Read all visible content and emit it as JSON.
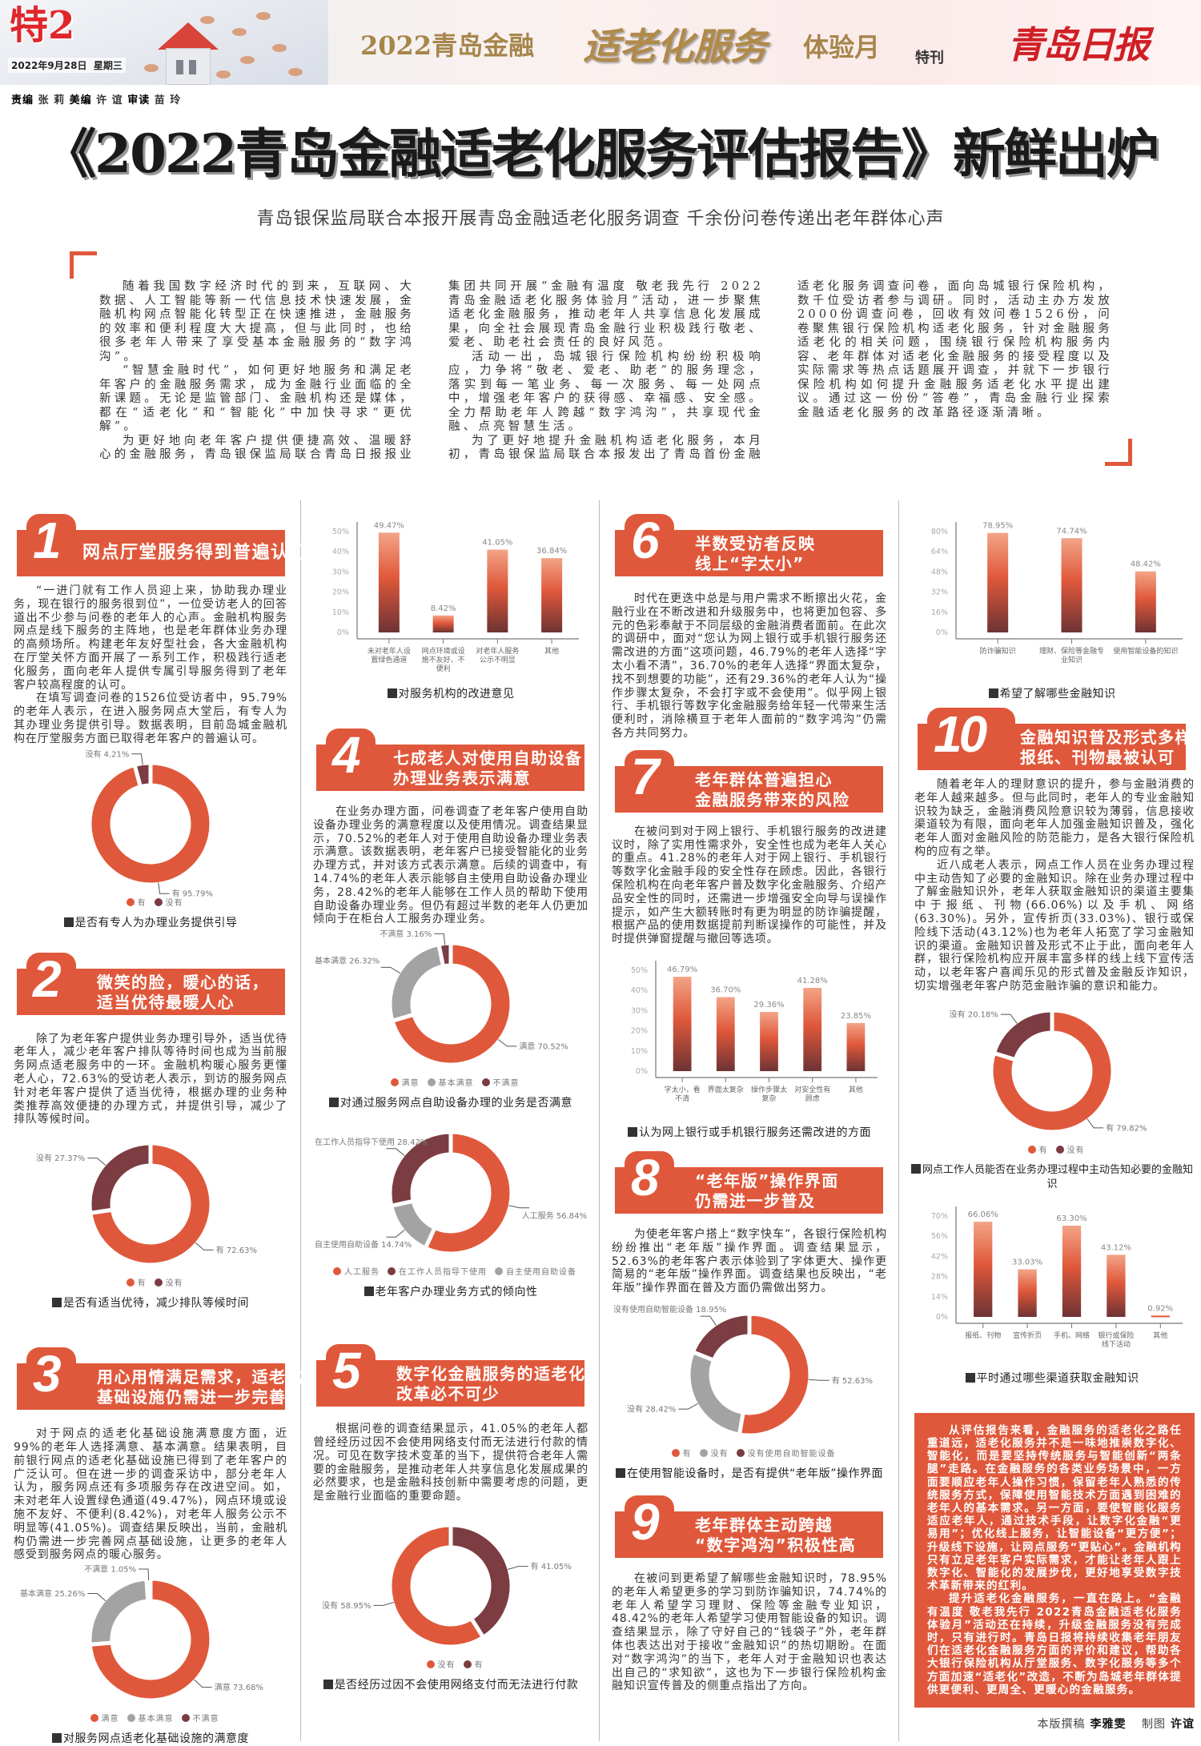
{
  "masthead": {
    "page_label": "特2",
    "date": "2022年9月28日",
    "weekday": "星期三",
    "banner_part1": "2022青岛金融",
    "banner_part2": "适老化服务",
    "banner_part3": "体验月",
    "banner_tag": "特刊",
    "newspaper_logo": "青岛日报"
  },
  "editors": {
    "l1": "责编",
    "n1": "张 莉",
    "l2": "美编",
    "n2": "许 谊",
    "l3": "审读",
    "n3": "苗 玲"
  },
  "headline": "《2022青岛金融适老化服务评估报告》新鲜出炉",
  "subheadline": "青岛银保监局联合本报开展青岛金融适老化服务调查  千余份问卷传递出老年群体心声",
  "intro": [
    "随着我国数字经济时代的到来，互联网、大数据、人工智能等新一代信息技术快速发展，金融机构网点智能化转型正在快速推进，金融服务的效率和便利程度大大提高，但与此同时，也给很多老年人带来了享受基本金融服务的“数字鸿沟”。",
    "“智慧金融时代”，如何更好地服务和满足老年客户的金融服务需求，成为金融行业面临的全新课题。无论是监管部门、金融机构还是媒体，都在“适老化”和“智能化”中加快寻求“更优解”。",
    "为更好地向老年客户提供便捷高效、温暖舒心的金融服务，青岛银保监局联合青岛日报报业集团共同开展“金融有温度 敬老我先行 2022青岛金融适老化服务体验月”活动，进一步聚焦适老化金融服务，推动老年人共享信息化发展成果，向全社会展现青岛金融行业积极践行敬老、爱老、助老社会责任的良好风范。",
    "活动一出，岛城银行保险机构纷纷积极响应，力争将“敬老、爱老、助老”的服务理念，落实到每一笔业务、每一次服务、每一处网点中，增强老年客户的获得感、幸福感、安全感。全力帮助老年人跨越“数字鸿沟”，共享现代金融、点亮智慧生活。",
    "为了更好地提升金融机构适老化服务，本月初，青岛银保监局联合本报发出了青岛首份金融适老化服务调查问卷，面向岛城银行保险机构，数千位受访者参与调研。同时，活动主办方发放2000份调查问卷，回收有效问卷1526份，问卷聚焦银行保险机构适老化服务，针对金融服务适老化的相关问题，围绕银行保险机构服务内容、老年群体对适老化金融服务的接受程度以及实际需求等热点话题展开调查，并就下一步银行保险机构如何提升金融服务适老化水平提出建议。通过这一份份“答卷”，青岛金融行业探索金融适老化服务的改革路径逐渐清晰。"
  ],
  "sections": [
    {
      "number": "1",
      "title": [
        "网点厅堂服务得到普遍认可"
      ],
      "paragraphs": [
        "“一进门就有工作人员迎上来，协助我办理业务，现在银行的服务很到位”，一位受访老人的回答道出不少参与问卷的老年人的心声。金融机构服务网点是线下服务的主阵地，也是老年群体业务办理的高频场所。构建老年友好型社会，各大金融机构在厅堂关怀方面开展了一系列工作，积极践行适老化服务，面向老年人提供专属引导服务得到了老年客户较高程度的认可。",
        "在填写调查问卷的1526位受访者中，95.79%的老年人表示，在进入服务网点大堂后，有专人为其办理业务提供引导。数据表明，目前岛城金融机构在厅堂服务方面已取得老年客户的普遍认可。"
      ]
    },
    {
      "number": "2",
      "title": [
        "微笑的脸，暖心的话，",
        "适当优待最暖人心"
      ],
      "paragraphs": [
        "除了为老年客户提供业务办理引导外，适当优待老年人，减少老年客户排队等待时间也成为当前服务网点适老服务中的一环。金融机构暖心服务更懂老人心，72.63%的受访老人表示，到访的服务网点针对老年客户提供了适当优待，根据办理的业务种类推荐高效便捷的办理方式，并提供引导，减少了排队等候时间。"
      ]
    },
    {
      "number": "3",
      "title": [
        "用心用情满足需求，适老化",
        "基础设施仍需进一步完善"
      ],
      "paragraphs": [
        "对于网点的适老化基础设施满意度方面，近99%的老年人选择满意、基本满意。结果表明，目前银行网点的适老化基础设施已得到了老年客户的广泛认可。但在进一步的调查采访中，部分老年人认为，服务网点还有多项服务存在改进空间。如，未对老年人设置绿色通道(49.47%)，网点环境或设施不友好、不便利(8.42%)，对老年人服务公示不明显等(41.05%)。调查结果反映出，当前，金融机构仍需进一步完善网点基础设施，让更多的老年人感受到服务网点的暖心服务。"
      ]
    },
    {
      "number": "4",
      "title": [
        "七成老人对使用自助设备",
        "办理业务表示满意"
      ],
      "paragraphs": [
        "在业务办理方面，问卷调查了老年客户使用自助设备办理业务的满意程度以及使用情况。调查结果显示，70.52%的老年人对于使用自助设备办理业务表示满意。该数据表明，老年客户已接受智能化的业务办理方式，并对该方式表示满意。后续的调查中，有14.74%的老年人表示能够自主使用自助设备办理业务，28.42%的老年人能够在工作人员的帮助下使用自助设备办理业务。但仍有超过半数的老年人仍更加倾向于在柜台人工服务办理业务。"
      ]
    },
    {
      "number": "5",
      "title": [
        "数字化金融服务的适老化",
        "改革必不可少"
      ],
      "paragraphs": [
        "根据问卷的调查结果显示，41.05%的老年人都曾经经历过因不会使用网络支付而无法进行付款的情况。可见在数字技术变革的当下，提供符合老年人需要的金融服务，是推动老年人共享信息化发展成果的必然要求，也是金融科技创新中需要考虑的问题，更是金融行业面临的重要命题。"
      ]
    },
    {
      "number": "6",
      "title": [
        "半数受访者反映",
        "线上“字太小”"
      ],
      "paragraphs": [
        "时代在更迭中总是与用户需求不断擦出火花，金融行业在不断改进和升级服务中，也将更加包容、多元的色彩奉献于不同层级的金融消费者面前。在此次的调研中，面对“您认为网上银行或手机银行服务还需改进的方面”这项问题，46.79%的老年人选择“字太小看不清”，36.70%的老年人选择“界面太复杂，找不到想要的功能”，还有29.36%的老年人认为“操作步骤太复杂，不会打字或不会使用”。似乎网上银行、手机银行等数字化金融服务给年轻一代带来生活便利时，消除横亘于老年人面前的“数字鸿沟”仍需各方共同努力。"
      ]
    },
    {
      "number": "7",
      "title": [
        "老年群体普遍担心",
        "金融服务带来的风险"
      ],
      "paragraphs": [
        "在被问到对于网上银行、手机银行服务的改进建议时，除了实用性需求外，安全性也成为老年人关心的重点。41.28%的老年人对于网上银行、手机银行等数字化金融手段的安全性存在顾虑。因此，各银行保险机构在向老年客户普及数字化金融服务、介绍产品安全性的同时，还需进一步增强安全向导与误操作提示，如产生大额转账时有更为明显的防诈骗提醒，根据产品的使用数据提前判断误操作的可能性，并及时提供弹窗提醒与撤回等选项。"
      ]
    },
    {
      "number": "8",
      "title": [
        "“老年版”操作界面",
        "仍需进一步普及"
      ],
      "paragraphs": [
        "为使老年客户搭上“数字快车”，各银行保险机构纷纷推出“老年版”操作界面。调查结果显示，52.63%的老年客户表示体验到了字体更大、操作更简易的“老年版”操作界面。调查结果也反映出，“老年版”操作界面在普及方面仍需做出努力。"
      ]
    },
    {
      "number": "9",
      "title": [
        "老年群体主动跨越",
        "“数字鸿沟”积极性高"
      ],
      "paragraphs": [
        "在被问到更希望了解哪些金融知识时，78.95%的老年人希望更多的学习到防诈骗知识，74.74%的老年人希望学习理财、保险等金融专业知识，48.42%的老年人希望学习使用智能设备的知识。调查结果显示，除了守好自己的“钱袋子”外，老年群体也表达出对于接收“金融知识”的热切期盼。在面对“数字鸿沟”的当下，老年人对于金融知识也表达出自己的“求知欲”，这也为下一步银行保险机构金融知识宣传普及的侧重点指出了方向。"
      ]
    },
    {
      "number": "10",
      "title": [
        "金融知识普及形式多样",
        "报纸、刊物最被认可"
      ],
      "paragraphs": [
        "随着老年人的理财意识的提升，参与金融消费的老年人越来越多。但与此同时，老年人的专业金融知识较为缺乏，金融消费风险意识较为薄弱，信息接收渠道较为有限，面向老年人加强金融知识普及，强化老年人面对金融风险的防范能力，是各大银行保险机构的应有之举。",
        "近八成老人表示，网点工作人员在业务办理过程中主动告知了必要的金融知识。除在业务办理过程中了解金融知识外，老年人获取金融知识的渠道主要集中于报纸、刊物(66.06%)以及手机、网络(63.30%)。另外，宣传折页(33.03%)、银行或保险线下活动(43.12%)也为老年人拓宽了学习金融知识的渠道。金融知识普及形式不止于此，面向老年人群，银行保险机构应开展丰富多样的线上线下宣传活动，以老年客户喜闻乐见的形式普及金融反诈知识，切实增强老年客户防范金融诈骗的意识和能力。"
      ]
    }
  ],
  "conclusion": [
    "从评估报告来看，金融服务的适老化之路任重道远，适老化服务并不是一味地推崇数字化、智能化，而是要坚持传统服务与智能创新“两条腿”走路。在金融服务的各类业务场景中，一方面要顺应老年人操作习惯，保留老年人熟悉的传统服务方式，保障使用智能技术方面遇到困难的老年人的基本需求。另一方面，要使智能化服务适应老年人，通过技术手段，让数字化金融“更易用”；优化线上服务，让智能设备“更方便”；升级线下设施，让网点服务“更贴心”。金融机构只有立足老年客户实际需求，才能让老年人跟上数字化、智能化的发展步伐，更好地享受数字技术革新带来的红利。",
    "提升适老化金融服务，一直在路上。“金融有温度 敬老我先行 2022青岛金融适老化服务体验月”活动还在持续，升级金融服务没有完成时，只有进行时。青岛日报将持续收集老年朋友们在适老化金融服务方面的评价和建议，帮助各大银行保险机构从厅堂服务、数字化服务等多个方面加速“适老化”改造，不断为岛城老年群体提供更便利、更周全、更暖心的金融服务。"
  ],
  "credits": {
    "writer_label": "本版撰稿",
    "writer": "李雅雯",
    "graphics_label": "制图",
    "graphics": "许谊"
  },
  "colors": {
    "accent": "#e0583b",
    "dark": "#7b3c42",
    "gray": "#a3a3a3",
    "bar_top": "#f3a487",
    "bar_bottom": "#6d3334"
  },
  "chart_data": [
    {
      "type": "pie",
      "variant": "donut",
      "title": "是否有专人为办理业务提供引导",
      "slices": [
        {
          "label": "有",
          "value": 95.79,
          "color": "#e0583b"
        },
        {
          "label": "没有",
          "value": 4.21,
          "color": "#7b3c42"
        }
      ],
      "legend": [
        "有",
        "没有"
      ]
    },
    {
      "type": "pie",
      "variant": "donut",
      "title": "是否有适当优待，减少排队等候时间",
      "slices": [
        {
          "label": "有",
          "value": 72.63,
          "color": "#e0583b"
        },
        {
          "label": "没有",
          "value": 27.37,
          "color": "#7b3c42"
        }
      ],
      "legend": [
        "有",
        "没有"
      ]
    },
    {
      "type": "pie",
      "variant": "donut",
      "title": "对服务网点适老化基础设施的满意度",
      "slices": [
        {
          "label": "满意",
          "value": 73.68,
          "color": "#e0583b"
        },
        {
          "label": "基本满意",
          "value": 25.26,
          "color": "#a3a3a3"
        },
        {
          "label": "不满意",
          "value": 1.05,
          "color": "#7b3c42"
        }
      ],
      "legend": [
        "满意",
        "基本满意",
        "不满意"
      ]
    },
    {
      "type": "bar",
      "title": "对服务机构的改进意见",
      "categories": [
        "未对老年人设置绿色通道",
        "网点环境或设施不友好、不便利",
        "对老年人服务公示不明显",
        "其他"
      ],
      "values": [
        49.47,
        8.42,
        41.05,
        36.84
      ],
      "yticks": [
        0,
        10,
        20,
        30,
        40,
        50
      ],
      "ylim": [
        0,
        50
      ],
      "unit": "%"
    },
    {
      "type": "pie",
      "variant": "donut",
      "title": "对通过服务网点自助设备办理的业务是否满意",
      "slices": [
        {
          "label": "满意",
          "value": 70.52,
          "color": "#e0583b"
        },
        {
          "label": "基本满意",
          "value": 26.32,
          "color": "#a3a3a3"
        },
        {
          "label": "不满意",
          "value": 3.16,
          "color": "#7b3c42"
        }
      ],
      "legend": [
        "满意",
        "基本满意",
        "不满意"
      ]
    },
    {
      "type": "pie",
      "variant": "donut",
      "title": "老年客户办理业务方式的倾向性",
      "slices": [
        {
          "label": "人工服务",
          "value": 56.84,
          "color": "#e0583b"
        },
        {
          "label": "自主使用自助设备",
          "value": 14.74,
          "color": "#a3a3a3"
        },
        {
          "label": "在工作人员指导下使用",
          "value": 28.42,
          "color": "#7b3c42"
        }
      ],
      "legend": [
        "人工服务",
        "在工作人员指导下使用",
        "自主使用自助设备"
      ]
    },
    {
      "type": "pie",
      "variant": "donut",
      "title": "是否经历过因不会使用网络支付而无法进行付款",
      "slices": [
        {
          "label": "有",
          "value": 41.05,
          "color": "#7b3c42"
        },
        {
          "label": "没有",
          "value": 58.95,
          "color": "#e0583b"
        }
      ],
      "legend": [
        "没有",
        "有"
      ]
    },
    {
      "type": "bar",
      "title": "认为网上银行或手机银行服务还需改进的方面",
      "categories": [
        "字太小，看不清",
        "界面太复杂",
        "操作步骤太复杂",
        "对安全性有顾虑",
        "其他"
      ],
      "values": [
        46.79,
        36.7,
        29.36,
        41.28,
        23.85
      ],
      "yticks": [
        0,
        10,
        20,
        30,
        40,
        50
      ],
      "ylim": [
        0,
        50
      ],
      "unit": "%"
    },
    {
      "type": "pie",
      "variant": "donut",
      "title": "在使用智能设备时，是否有提供“老年版”操作界面",
      "slices": [
        {
          "label": "有",
          "value": 52.63,
          "color": "#e0583b"
        },
        {
          "label": "没有",
          "value": 28.42,
          "color": "#a3a3a3"
        },
        {
          "label": "没有使用自助智能设备",
          "value": 18.95,
          "color": "#7b3c42"
        }
      ],
      "legend": [
        "有",
        "没有",
        "没有使用自助智能设备"
      ]
    },
    {
      "type": "bar",
      "title": "希望了解哪些金融知识",
      "categories": [
        "防诈骗知识",
        "理财、保险等金融专业知识",
        "使用智能设备的知识"
      ],
      "values": [
        78.95,
        74.74,
        48.42
      ],
      "yticks": [
        0,
        16,
        32,
        48,
        64,
        80
      ],
      "ylim": [
        0,
        80
      ],
      "unit": "%"
    },
    {
      "type": "pie",
      "variant": "donut",
      "title": "网点工作人员能否在业务办理过程中主动告知必要的金融知识",
      "slices": [
        {
          "label": "有",
          "value": 79.82,
          "color": "#e0583b"
        },
        {
          "label": "没有",
          "value": 20.18,
          "color": "#7b3c42"
        }
      ],
      "legend": [
        "有",
        "没有"
      ]
    },
    {
      "type": "bar",
      "title": "平时通过哪些渠道获取金融知识",
      "categories": [
        "报纸、刊物",
        "宣传折页",
        "手机、网络",
        "银行或保险线下活动",
        "其他"
      ],
      "values": [
        66.06,
        33.03,
        63.3,
        43.12,
        0.92
      ],
      "yticks": [
        0,
        14,
        28,
        42,
        56,
        70
      ],
      "ylim": [
        0,
        70
      ],
      "unit": "%"
    }
  ]
}
